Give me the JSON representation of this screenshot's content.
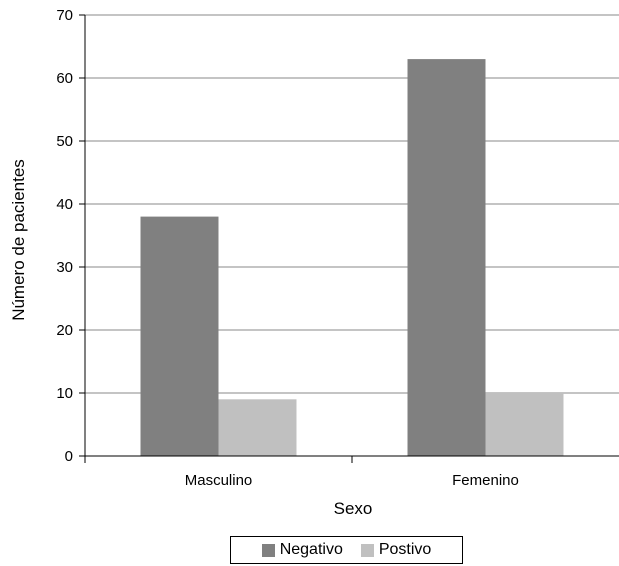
{
  "chart_data": {
    "type": "bar",
    "categories": [
      "Masculino",
      "Femenino"
    ],
    "series": [
      {
        "name": "Negativo",
        "values": [
          38,
          63
        ],
        "color": "#808080"
      },
      {
        "name": "Postivo",
        "values": [
          9,
          10
        ],
        "color": "#c0c0c0"
      }
    ],
    "xlabel": "Sexo",
    "ylabel": "Número de pacientes",
    "ylim": [
      0,
      70
    ],
    "yticks": [
      "0",
      "10",
      "20",
      "30",
      "40",
      "50",
      "60",
      "70"
    ],
    "grid": true,
    "legend_position": "bottom"
  }
}
